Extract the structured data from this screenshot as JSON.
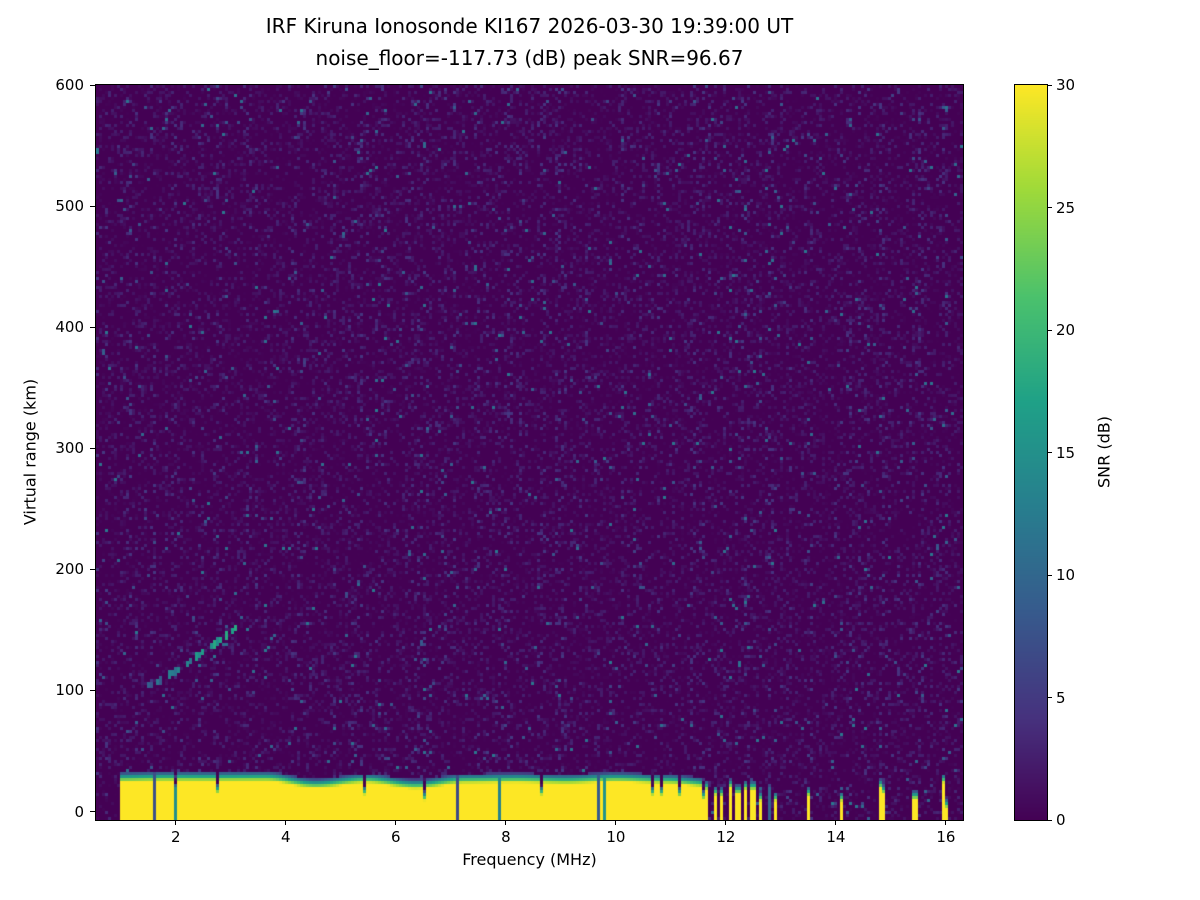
{
  "chart_data": {
    "type": "heatmap",
    "title": "IRF Kiruna Ionosonde KI167 2026-03-30 19:39:00  UT",
    "subtitle": "noise_floor=-117.73 (dB) peak SNR=96.67",
    "station": "IRF Kiruna Ionosonde KI167",
    "timestamp_ut": "2026-03-30 19:39:00 UT",
    "noise_floor_db": -117.73,
    "peak_snr_db": 96.67,
    "xlabel": "Frequency (MHz)",
    "ylabel": "Virtual range (km)",
    "colorbar_label": "SNR (dB)",
    "xlim": [
      0.55,
      16.31
    ],
    "ylim": [
      -7,
      600
    ],
    "clim": [
      0,
      30
    ],
    "x_ticks": [
      2,
      4,
      6,
      8,
      10,
      12,
      14,
      16
    ],
    "y_ticks": [
      0,
      100,
      200,
      300,
      400,
      500,
      600
    ],
    "colorbar_ticks": [
      0,
      5,
      10,
      15,
      20,
      25,
      30
    ],
    "colormap": "viridis",
    "viridis_anchors": [
      [
        0.0,
        "#440154"
      ],
      [
        0.14,
        "#46327e"
      ],
      [
        0.29,
        "#365c8d"
      ],
      [
        0.43,
        "#277f8e"
      ],
      [
        0.57,
        "#1fa187"
      ],
      [
        0.71,
        "#4ac16d"
      ],
      [
        0.86,
        "#a0da39"
      ],
      [
        1.0,
        "#fde725"
      ]
    ],
    "seed": 167,
    "features": {
      "ground_clutter_band": {
        "freq_start_mhz": 1.0,
        "freq_end_mhz": 11.62,
        "top_km_mean": 30,
        "snr_db": 30
      },
      "striped_band": {
        "freq_start_mhz": 11.62,
        "freq_end_mhz": 13.05,
        "stripe_period_mhz": 0.14,
        "stripe_duty": 0.5
      },
      "isolated_stripes_mhz": [
        13.5,
        14.1,
        14.85,
        15.45,
        15.97
      ],
      "echo_trace": {
        "freq_start_mhz": 1.45,
        "freq_end_mhz": 3.1,
        "range_start_km": 103,
        "range_end_km": 152,
        "peak_snr_db": 16
      },
      "rfi_columns": [
        {
          "freq_mhz": 6.5,
          "strength": 0.6
        },
        {
          "freq_mhz": 9.9,
          "strength": 0.5
        }
      ],
      "noise": {
        "speckle_probability": 0.013,
        "speckle_max_db": 12,
        "background_max_db": 3.5
      }
    }
  }
}
